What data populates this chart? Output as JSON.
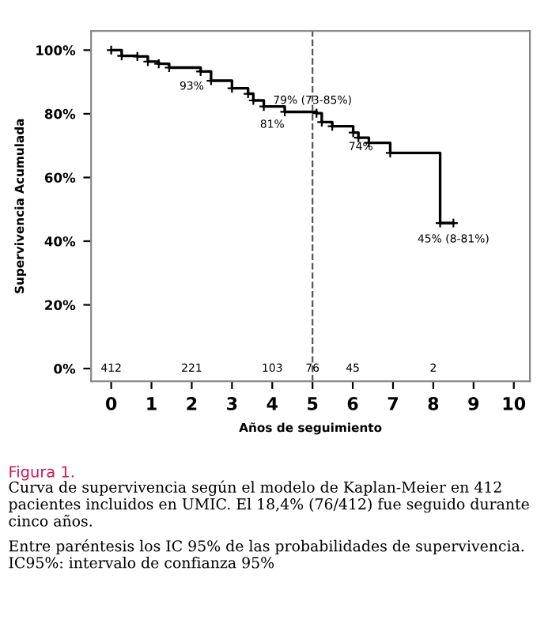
{
  "chart_data": {
    "type": "step",
    "xlabel": "Años de seguimiento",
    "ylabel": "Supervivencia Acumulada",
    "x": [
      0,
      0.26,
      0.65,
      0.91,
      1.18,
      1.44,
      2.22,
      2.48,
      3.0,
      3.4,
      3.53,
      3.79,
      4.31,
      5.1,
      5.23,
      5.49,
      6.01,
      6.14,
      6.4,
      6.93,
      8.17,
      8.5
    ],
    "values": [
      100,
      98.2,
      98,
      96.4,
      95.7,
      94.5,
      93.3,
      90.4,
      88,
      86.3,
      84.2,
      82.3,
      80.6,
      80.2,
      77.4,
      76.1,
      74.1,
      72.5,
      70.9,
      67.7,
      45.7,
      45.7
    ],
    "color": "#000000",
    "marker": "cross",
    "line_style": "solid",
    "xlim": [
      -0.5,
      10.4
    ],
    "ylim": [
      -4,
      106
    ],
    "xticks": [
      0,
      1,
      2,
      3,
      4,
      5,
      6,
      7,
      8,
      9,
      10
    ],
    "yticks": [
      {
        "value": 0,
        "label": "0%"
      },
      {
        "value": 20,
        "label": "20%"
      },
      {
        "value": 40,
        "label": "40%"
      },
      {
        "value": 60,
        "label": "60%"
      },
      {
        "value": 80,
        "label": "80%"
      },
      {
        "value": 100,
        "label": "100%"
      }
    ],
    "grid": false,
    "ref_lines": [
      {
        "axis": "x",
        "value": 5,
        "line_style": "dashed",
        "color": "#555555"
      }
    ],
    "annotations": [
      {
        "text": "93%",
        "x": 2,
        "y": 93
      },
      {
        "text": "81%",
        "x": 4,
        "y": 81
      },
      {
        "text": "79% (73-85%)",
        "x": 5,
        "y": 79
      },
      {
        "text": "74%",
        "x": 6.2,
        "y": 74
      },
      {
        "text": "45% (8-81%)",
        "x": 8.5,
        "y": 45
      },
      "412",
      "221",
      "103",
      "76",
      "45",
      "2",
      "Figura 1.",
      "Curva de supervivencia según el modelo de Kaplan-Meier en 412 pacientes incluidos en UMIC. El 18,4% (76/412) fue seguido durante cinco años.",
      "Entre paréntesis los IC 95% de las probabilidades de supervivencia. IC95%: intervalo de confianza 95%"
    ]
  }
}
